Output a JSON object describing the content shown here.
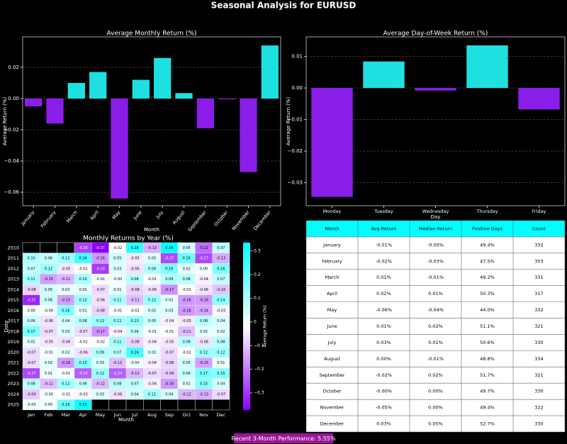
{
  "title": "Seasonal Analysis for EURUSD",
  "chart_data": [
    {
      "type": "bar",
      "title": "Average Monthly Return (%)",
      "xlabel": "Month",
      "ylabel": "Average Return (%)",
      "categories": [
        "January",
        "February",
        "March",
        "April",
        "May",
        "June",
        "July",
        "August",
        "September",
        "October",
        "November",
        "December"
      ],
      "values": [
        -0.005,
        -0.016,
        0.01,
        0.017,
        -0.064,
        0.012,
        0.026,
        0.0035,
        -0.019,
        -0.0005,
        -0.047,
        0.034
      ],
      "ylim": [
        -0.0686,
        0.0395
      ],
      "yticks": [
        {
          "value": -0.06,
          "label": "−0.06"
        },
        {
          "value": -0.04,
          "label": "−0.04"
        },
        {
          "value": -0.02,
          "label": "−0.02"
        },
        {
          "value": 0,
          "label": "0.00"
        },
        {
          "value": 0.02,
          "label": "0.02"
        }
      ],
      "grid": true,
      "positive_color": "#1fe0e0",
      "negative_color": "#8a1ee8",
      "rotate_labels": true
    },
    {
      "type": "bar",
      "title": "Average Day-of-Week Return (%)",
      "xlabel": "Day",
      "ylabel": "Average Return (%)",
      "categories": [
        "Monday",
        "Tuesday",
        "Wednesday",
        "Thursday",
        "Friday"
      ],
      "values": [
        -0.0345,
        0.0084,
        -0.0008,
        0.0135,
        -0.0068
      ],
      "ylim": [
        -0.0373,
        0.0162
      ],
      "yticks": [
        {
          "value": -0.03,
          "label": "−0.03"
        },
        {
          "value": -0.02,
          "label": "−0.02"
        },
        {
          "value": -0.01,
          "label": "−0.01"
        },
        {
          "value": 0,
          "label": "0.00"
        },
        {
          "value": 0.01,
          "label": "0.01"
        }
      ],
      "grid": true,
      "positive_color": "#1fe0e0",
      "negative_color": "#8a1ee8",
      "rotate_labels": false
    },
    {
      "type": "heatmap",
      "title": "Monthly Returns by Year (%)",
      "xlabel": "Month",
      "ylabel": "Date",
      "rows": [
        "2010",
        "2011",
        "2012",
        "2013",
        "2014",
        "2015",
        "2016",
        "2017",
        "2018",
        "2019",
        "2020",
        "2021",
        "2022",
        "2023",
        "2024",
        "2025"
      ],
      "columns": [
        "Jan",
        "Feb",
        "Mar",
        "Apr",
        "May",
        "Jun",
        "Jul",
        "Aug",
        "Sep",
        "Oct",
        "Nov",
        "Dec"
      ],
      "values": [
        [
          null,
          null,
          null,
          -0.28,
          -0.37,
          -0.02,
          0.28,
          -0.13,
          0.34,
          0.05,
          -0.22,
          0.07
        ],
        [
          0.1,
          0.06,
          0.12,
          0.24,
          -0.16,
          0.05,
          -0.05,
          0.03,
          -0.27,
          0.19,
          -0.27,
          -0.13
        ],
        [
          0.07,
          0.12,
          -0.05,
          -0.02,
          -0.29,
          0.03,
          -0.06,
          0.09,
          0.16,
          0.02,
          0,
          0.16
        ],
        [
          0.11,
          -0.15,
          -0.12,
          0.1,
          -0.02,
          -0.001,
          0.08,
          -0.01,
          0.09,
          0.08,
          -0.04,
          0.07
        ],
        [
          -0.08,
          0.05,
          0.02,
          0.02,
          -0.07,
          0.01,
          -0.08,
          -0.06,
          -0.17,
          -0.02,
          -0.06,
          -0.1
        ],
        [
          -0.32,
          0.06,
          -0.15,
          0.12,
          -0.06,
          0.11,
          -0.11,
          0.12,
          0.02,
          -0.16,
          -0.16,
          0.14
        ],
        [
          0,
          -0.001,
          0.16,
          0.01,
          -0.08,
          -0.01,
          -0.02,
          0.03,
          0.03,
          -0.16,
          -0.14,
          -0.03
        ],
        [
          0.06,
          -0.06,
          0.04,
          0.08,
          0.12,
          0.11,
          0.13,
          0.05,
          -0.04,
          -0.05,
          0.08,
          0.04
        ],
        [
          0.17,
          -0.07,
          0.03,
          -0.07,
          -0.17,
          -0.04,
          0.06,
          -0.01,
          -0.01,
          -0.11,
          0.02,
          0.02
        ],
        [
          0.02,
          -0.05,
          -0.06,
          -0.02,
          -0.02,
          0.11,
          -0.08,
          -0.04,
          -0.05,
          0.08,
          -0.06,
          0.08
        ],
        [
          -0.07,
          -0.01,
          0.02,
          -0.06,
          0.09,
          0.07,
          0.24,
          0.02,
          -0.07,
          -0.02,
          0.12,
          0.12
        ],
        [
          -0.07,
          0.02,
          -0.16,
          0.15,
          0.03,
          -0.11,
          -0.001,
          -0.04,
          -0.08,
          0.05,
          -0.15,
          0.01
        ],
        [
          -0.27,
          0.01,
          -0.01,
          -0.24,
          0.12,
          -0.24,
          -0.12,
          -0.07,
          -0.09,
          0.06,
          0.17,
          0.15
        ],
        [
          0.08,
          -0.11,
          0.12,
          0.06,
          -0.12,
          0.08,
          0.07,
          -0.04,
          -0.16,
          0.02,
          0.15,
          0.04
        ],
        [
          -0.09,
          -0.001,
          -0.02,
          -0.03,
          0.03,
          -0.06,
          0.04,
          0.11,
          0.04,
          -0.12,
          -0.13,
          -0.07
        ],
        [
          -0.001,
          0,
          0.19,
          0.32,
          null,
          null,
          null,
          null,
          null,
          null,
          null,
          null
        ]
      ],
      "value_labels": [
        [
          null,
          null,
          null,
          "-0.28",
          "-0.37",
          "-0.02",
          "0.28",
          "-0.13",
          "0.34",
          "0.05",
          "-0.22",
          "0.07"
        ],
        [
          "0.10",
          "0.06",
          "0.12",
          "0.24",
          "-0.16",
          "0.05",
          "-0.05",
          "0.03",
          "-0.27",
          "0.19",
          "-0.27",
          "-0.13"
        ],
        [
          "0.07",
          "0.12",
          "-0.05",
          "-0.02",
          "-0.29",
          "0.03",
          "-0.06",
          "0.09",
          "0.16",
          "0.02",
          "0.00",
          "0.16"
        ],
        [
          "0.11",
          "-0.15",
          "-0.12",
          "0.10",
          "-0.02",
          "-0.00",
          "0.08",
          "-0.01",
          "0.09",
          "0.08",
          "-0.04",
          "0.07"
        ],
        [
          "-0.08",
          "0.05",
          "0.02",
          "0.02",
          "-0.07",
          "0.01",
          "-0.08",
          "-0.06",
          "-0.17",
          "-0.02",
          "-0.06",
          "-0.10"
        ],
        [
          "-0.32",
          "0.06",
          "-0.15",
          "0.12",
          "-0.06",
          "0.11",
          "-0.11",
          "0.12",
          "0.02",
          "-0.16",
          "-0.16",
          "0.14"
        ],
        [
          "0.00",
          "-0.00",
          "0.16",
          "0.01",
          "-0.08",
          "-0.01",
          "-0.02",
          "0.03",
          "0.03",
          "-0.16",
          "-0.14",
          "-0.03"
        ],
        [
          "0.06",
          "-0.06",
          "0.04",
          "0.08",
          "0.12",
          "0.11",
          "0.13",
          "0.05",
          "-0.04",
          "-0.05",
          "0.08",
          "0.04"
        ],
        [
          "0.17",
          "-0.07",
          "0.03",
          "-0.07",
          "-0.17",
          "-0.04",
          "0.06",
          "-0.01",
          "-0.01",
          "-0.11",
          "0.02",
          "0.02"
        ],
        [
          "0.02",
          "-0.05",
          "-0.06",
          "-0.02",
          "-0.02",
          "0.11",
          "-0.08",
          "-0.04",
          "-0.05",
          "0.08",
          "-0.06",
          "0.08"
        ],
        [
          "-0.07",
          "-0.01",
          "0.02",
          "-0.06",
          "0.09",
          "0.07",
          "0.24",
          "0.02",
          "-0.07",
          "-0.02",
          "0.12",
          "0.12"
        ],
        [
          "-0.07",
          "0.02",
          "-0.16",
          "0.15",
          "0.03",
          "-0.11",
          "-0.00",
          "-0.04",
          "-0.08",
          "0.05",
          "-0.15",
          "0.01"
        ],
        [
          "-0.27",
          "0.01",
          "-0.01",
          "-0.24",
          "0.12",
          "-0.24",
          "-0.12",
          "-0.07",
          "-0.09",
          "0.06",
          "0.17",
          "0.15"
        ],
        [
          "0.08",
          "-0.11",
          "0.12",
          "0.06",
          "-0.12",
          "0.08",
          "0.07",
          "-0.04",
          "-0.16",
          "0.02",
          "0.15",
          "0.04"
        ],
        [
          "-0.09",
          "-0.00",
          "-0.02",
          "-0.03",
          "0.03",
          "-0.06",
          "0.04",
          "0.11",
          "0.04",
          "-0.12",
          "-0.13",
          "-0.07"
        ],
        [
          "-0.00",
          "0.00",
          "0.19",
          "0.32",
          null,
          null,
          null,
          null,
          null,
          null,
          null,
          null
        ]
      ],
      "clim": [
        -0.372,
        0.336
      ],
      "colormap": [
        "#8a00ff",
        "#ffffff",
        "#00ffff"
      ],
      "colorbar_label": "Average Return (%)",
      "colorbar_ticks": [
        {
          "value": -0.3,
          "label": "−0.3"
        },
        {
          "value": -0.2,
          "label": "−0.2"
        },
        {
          "value": -0.1,
          "label": "−0.1"
        },
        0,
        0.1,
        0.2,
        0.3
      ]
    }
  ],
  "table": {
    "columns": [
      "Month",
      "Avg Return",
      "Median Return",
      "Positive Days",
      "Count"
    ],
    "rows": [
      [
        "January",
        "-0.01%",
        "-0.00%",
        "49.4%",
        "332"
      ],
      [
        "February",
        "-0.02%",
        "-0.03%",
        "47.5%",
        "303"
      ],
      [
        "March",
        "0.01%",
        "-0.01%",
        "49.2%",
        "331"
      ],
      [
        "April",
        "0.02%",
        "0.01%",
        "50.3%",
        "317"
      ],
      [
        "May",
        "-0.06%",
        "-0.04%",
        "44.0%",
        "332"
      ],
      [
        "June",
        "0.01%",
        "0.02%",
        "51.1%",
        "321"
      ],
      [
        "July",
        "0.03%",
        "0.01%",
        "50.6%",
        "330"
      ],
      [
        "August",
        "0.00%",
        "-0.01%",
        "48.8%",
        "334"
      ],
      [
        "September",
        "-0.02%",
        "0.02%",
        "51.7%",
        "321"
      ],
      [
        "October",
        "-0.00%",
        "0.00%",
        "49.7%",
        "330"
      ],
      [
        "November",
        "-0.05%",
        "0.00%",
        "49.4%",
        "322"
      ],
      [
        "December",
        "0.03%",
        "0.05%",
        "52.7%",
        "330"
      ]
    ]
  },
  "footer": "Recent 3-Month Performance: 5.55%"
}
